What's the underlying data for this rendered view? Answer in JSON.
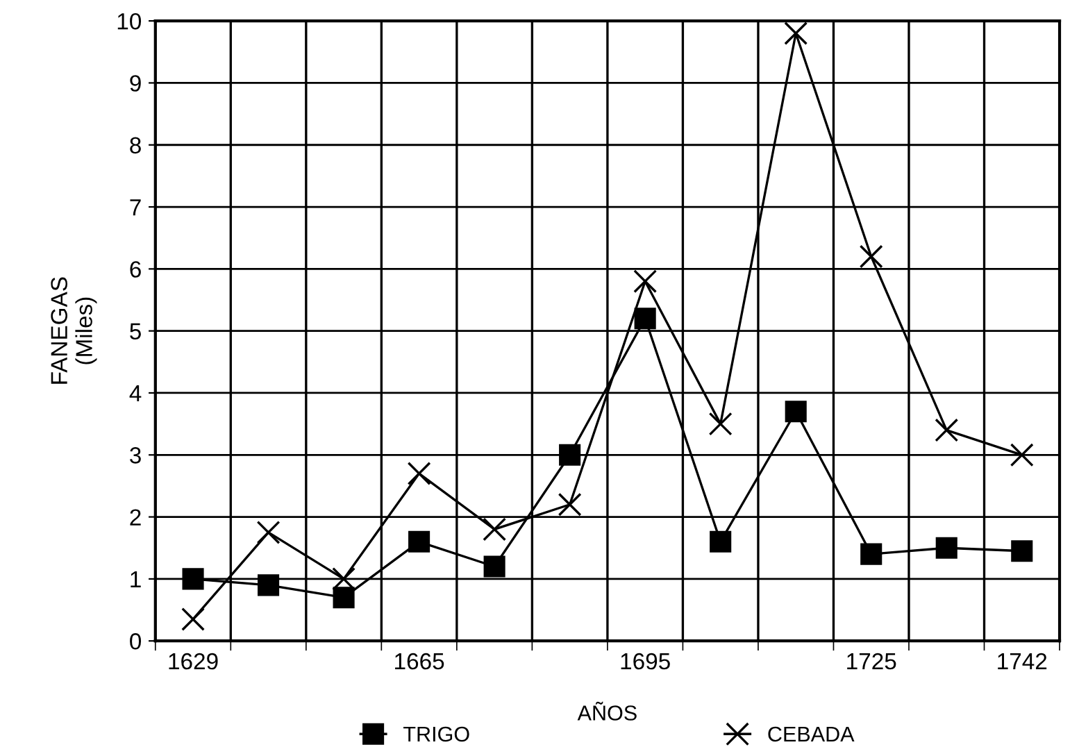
{
  "chart_data": {
    "type": "line",
    "xlabel": "AÑOS",
    "ylabel": "FANEGAS\n(Miles)",
    "categories": [
      "1629",
      null,
      null,
      "1665",
      null,
      null,
      "1695",
      null,
      null,
      "1725",
      null,
      "1742"
    ],
    "series": [
      {
        "name": "TRIGO",
        "color": "#000000",
        "marker": "square",
        "values": [
          1.0,
          0.9,
          0.7,
          1.6,
          1.2,
          3.0,
          5.2,
          1.6,
          3.7,
          1.4,
          1.5,
          1.45
        ]
      },
      {
        "name": "CEBADA",
        "color": "#000000",
        "marker": "cross",
        "values": [
          0.35,
          1.75,
          1.0,
          2.7,
          1.8,
          2.2,
          5.8,
          3.5,
          9.8,
          6.2,
          3.4,
          3.0
        ]
      }
    ],
    "ylim": [
      0,
      10
    ],
    "yticks": [
      0,
      1,
      2,
      3,
      4,
      5,
      6,
      7,
      8,
      9,
      10
    ],
    "grid": true,
    "legend": "bottom",
    "line_style": "solid"
  }
}
